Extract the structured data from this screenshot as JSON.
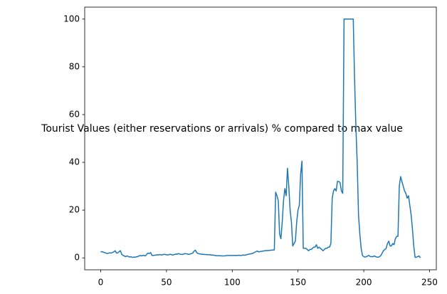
{
  "chart_data": {
    "type": "line",
    "title": "Tourist Values (either reservations or arrivals) % compared to max value",
    "x": [
      0,
      1,
      2,
      3,
      4,
      5,
      6,
      7,
      8,
      9,
      10,
      11,
      12,
      13,
      14,
      15,
      16,
      17,
      18,
      19,
      20,
      21,
      22,
      23,
      24,
      25,
      26,
      27,
      28,
      29,
      30,
      31,
      32,
      33,
      34,
      35,
      36,
      37,
      38,
      39,
      40,
      41,
      42,
      43,
      44,
      45,
      46,
      47,
      48,
      49,
      50,
      51,
      52,
      53,
      54,
      55,
      56,
      57,
      58,
      59,
      60,
      61,
      62,
      63,
      64,
      65,
      66,
      67,
      68,
      69,
      70,
      71,
      72,
      73,
      74,
      75,
      76,
      77,
      78,
      79,
      80,
      81,
      82,
      83,
      84,
      85,
      86,
      87,
      88,
      89,
      90,
      91,
      92,
      93,
      94,
      95,
      96,
      97,
      98,
      99,
      100,
      101,
      102,
      103,
      104,
      105,
      106,
      107,
      108,
      109,
      110,
      111,
      112,
      113,
      114,
      115,
      116,
      117,
      118,
      119,
      120,
      121,
      122,
      123,
      124,
      125,
      126,
      127,
      128,
      129,
      130,
      131,
      132,
      133,
      134,
      135,
      136,
      137,
      138,
      139,
      140,
      141,
      142,
      143,
      144,
      145,
      146,
      147,
      148,
      149,
      150,
      151,
      152,
      153,
      154,
      155,
      156,
      157,
      158,
      159,
      160,
      161,
      162,
      163,
      164,
      165,
      166,
      167,
      168,
      169,
      170,
      171,
      172,
      173,
      174,
      175,
      176,
      177,
      178,
      179,
      180,
      181,
      182,
      183,
      184,
      185,
      186,
      187,
      188,
      189,
      190,
      191,
      192,
      193,
      194,
      195,
      196,
      197,
      198,
      199,
      200,
      201,
      202,
      203,
      204,
      205,
      206,
      207,
      208,
      209,
      210,
      211,
      212,
      213,
      214,
      215,
      216,
      217,
      218,
      219,
      220,
      221,
      222,
      223,
      224,
      225,
      226,
      227,
      228,
      229,
      230,
      231,
      232,
      233,
      234,
      235,
      236,
      237,
      238,
      239,
      240,
      241,
      242,
      243
    ],
    "series": [
      {
        "color": "#1f77b4",
        "values": [
          2.5,
          2.6,
          2.4,
          2.2,
          2.0,
          1.8,
          2.0,
          2.1,
          2.0,
          2.3,
          2.5,
          3.0,
          2.0,
          2.1,
          2.6,
          3.0,
          1.5,
          1.0,
          0.8,
          0.5,
          0.8,
          0.6,
          0.3,
          0.5,
          0.2,
          0.3,
          0.3,
          0.4,
          0.5,
          0.8,
          1.0,
          0.8,
          1.0,
          1.0,
          0.8,
          1.5,
          2.0,
          1.8,
          2.2,
          1.0,
          1.0,
          1.1,
          1.2,
          1.3,
          1.2,
          1.4,
          1.2,
          1.3,
          1.5,
          1.4,
          1.3,
          1.2,
          1.4,
          1.5,
          1.3,
          1.2,
          1.4,
          1.6,
          1.5,
          1.8,
          1.6,
          1.5,
          1.4,
          1.6,
          1.8,
          1.7,
          1.6,
          1.5,
          1.6,
          1.8,
          2.0,
          2.8,
          3.2,
          2.2,
          1.8,
          1.7,
          1.6,
          1.5,
          1.5,
          1.4,
          1.4,
          1.3,
          1.3,
          1.3,
          1.2,
          1.2,
          1.1,
          1.0,
          0.9,
          0.9,
          0.9,
          0.9,
          0.8,
          0.8,
          0.8,
          0.9,
          1.0,
          1.0,
          1.0,
          1.0,
          1.0,
          1.0,
          1.0,
          1.0,
          1.0,
          1.1,
          1.0,
          1.0,
          1.2,
          1.1,
          1.2,
          1.3,
          1.5,
          1.6,
          1.7,
          1.8,
          2.0,
          2.3,
          2.6,
          2.9,
          2.5,
          2.6,
          2.7,
          2.8,
          2.9,
          3.0,
          3.0,
          3.1,
          3.1,
          3.2,
          3.2,
          3.3,
          3.3,
          27.5,
          26,
          24,
          10,
          8,
          15,
          24,
          29,
          26,
          37.5,
          30,
          20,
          15,
          5,
          6,
          7,
          15,
          20,
          22,
          35,
          40.5,
          4,
          4,
          4,
          3.5,
          3,
          3.5,
          3.5,
          4,
          4.5,
          4.5,
          5.5,
          4,
          4.5,
          4,
          3.5,
          3,
          3.5,
          4,
          4,
          4.5,
          4.5,
          6,
          25,
          28,
          29,
          28,
          32,
          32,
          31.5,
          28,
          27,
          100,
          100,
          100,
          100,
          100,
          100,
          100,
          100,
          75,
          55,
          40,
          18,
          10,
          4,
          1,
          0.5,
          0.3,
          0.5,
          0.8,
          1,
          0.5,
          0.5,
          0.5,
          0.8,
          0.5,
          0.3,
          0.3,
          0.5,
          1,
          2,
          3,
          3.5,
          4,
          6,
          7,
          5,
          5,
          6,
          5.5,
          8,
          9,
          9,
          30,
          34,
          32,
          30,
          28,
          27,
          25,
          26,
          22,
          18,
          12,
          5,
          0.2,
          0.3,
          0.5,
          0.8,
          0
        ]
      }
    ],
    "xlim": [
      -12.15,
      255.15
    ],
    "xticks": [
      0,
      50,
      100,
      150,
      200,
      250
    ],
    "ylim": [
      -5,
      105
    ],
    "yticks": [
      0,
      20,
      40,
      60,
      80,
      100
    ],
    "grid": false
  }
}
